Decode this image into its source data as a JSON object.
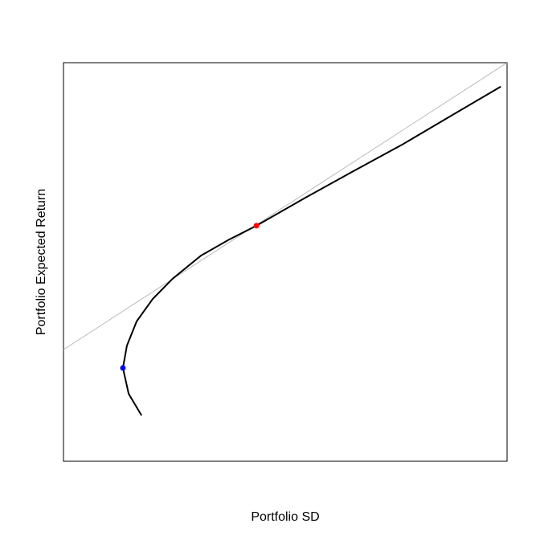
{
  "chart_data": {
    "type": "line",
    "xlabel": "Portfolio SD",
    "ylabel": "Portfolio Expected Return",
    "xlim": [
      0,
      100
    ],
    "ylim": [
      0,
      100
    ],
    "series": [
      {
        "color": "#000000",
        "width": 2,
        "x": [
          17.6,
          14.7,
          13.4,
          14.3,
          16.5,
          20.1,
          24.6,
          31.0,
          37.3,
          43.5,
          54.5,
          65.4,
          76.3,
          87.1,
          98.6
        ],
        "values": [
          11.5,
          16.9,
          23.4,
          29.0,
          35.1,
          40.7,
          45.8,
          51.6,
          55.6,
          59.1,
          66.1,
          72.8,
          79.4,
          86.5,
          94.0
        ]
      },
      {
        "color": "#bbbbbb",
        "width": 1,
        "x": [
          0,
          100
        ],
        "values": [
          28.0,
          100
        ]
      }
    ],
    "points": [
      {
        "color": "#0000ff",
        "x": 13.4,
        "y": 23.4
      },
      {
        "color": "#ff0000",
        "x": 43.5,
        "y": 59.1
      }
    ]
  }
}
